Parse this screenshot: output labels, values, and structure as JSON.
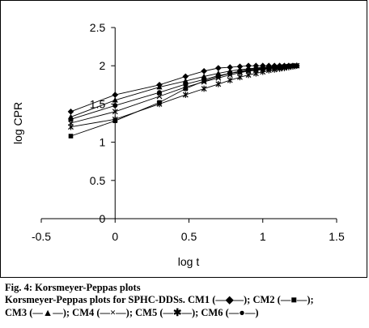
{
  "chart_data": {
    "type": "line",
    "title": "",
    "xlabel": "log t",
    "ylabel": "log CPR",
    "xlim": [
      -0.5,
      1.5
    ],
    "ylim": [
      0,
      2.5
    ],
    "xticks": [
      "-0.5",
      "0",
      "0.5",
      "1",
      "1.5"
    ],
    "yticks": [
      "0",
      "0.5",
      "1",
      "1.5",
      "2",
      "2.5"
    ],
    "x": [
      -0.3,
      0,
      0.3,
      0.477,
      0.602,
      0.699,
      0.778,
      0.845,
      0.903,
      0.954,
      1.0,
      1.041,
      1.079,
      1.114,
      1.146,
      1.176,
      1.204,
      1.23
    ],
    "series": [
      {
        "name": "CM1",
        "marker": "diamond",
        "values": [
          1.4,
          1.62,
          1.75,
          1.86,
          1.93,
          1.97,
          1.98,
          1.99,
          2.0,
          2.0,
          2.0,
          2.0,
          2.0,
          2.0,
          2.0,
          2.0,
          2.0,
          2.0
        ]
      },
      {
        "name": "CM2",
        "marker": "square",
        "values": [
          1.08,
          1.28,
          1.52,
          1.7,
          1.8,
          1.86,
          1.9,
          1.92,
          1.94,
          1.95,
          1.96,
          1.97,
          1.98,
          1.98,
          1.99,
          1.99,
          2.0,
          2.0
        ]
      },
      {
        "name": "CM3",
        "marker": "triangle",
        "values": [
          1.33,
          1.55,
          1.72,
          1.8,
          1.86,
          1.9,
          1.93,
          1.95,
          1.96,
          1.97,
          1.98,
          1.98,
          1.99,
          1.99,
          1.99,
          2.0,
          2.0,
          2.0
        ]
      },
      {
        "name": "CM4",
        "marker": "x",
        "values": [
          1.25,
          1.4,
          1.6,
          1.72,
          1.79,
          1.84,
          1.88,
          1.91,
          1.93,
          1.94,
          1.95,
          1.96,
          1.97,
          1.98,
          1.98,
          1.99,
          1.99,
          2.0
        ]
      },
      {
        "name": "CM5",
        "marker": "asterisk",
        "values": [
          1.2,
          1.3,
          1.5,
          1.62,
          1.7,
          1.76,
          1.81,
          1.85,
          1.88,
          1.9,
          1.92,
          1.94,
          1.95,
          1.96,
          1.97,
          1.98,
          1.99,
          2.0
        ]
      },
      {
        "name": "CM6",
        "marker": "circle",
        "values": [
          1.3,
          1.48,
          1.65,
          1.76,
          1.82,
          1.87,
          1.9,
          1.93,
          1.95,
          1.96,
          1.97,
          1.98,
          1.98,
          1.99,
          1.99,
          2.0,
          2.0,
          2.0
        ]
      }
    ],
    "grid": false,
    "legend": "none"
  },
  "caption": {
    "title": "Fig. 4: Korsmeyer-Peppas plots",
    "line2": "Korsmeyer-Peppas plots for SPHC-DDSs. CM1 (—◆—); CM2 (—■—);",
    "line3": "CM3 (—▲—); CM4 (—×—); CM5 (—✱—); CM6 (—●—)"
  }
}
